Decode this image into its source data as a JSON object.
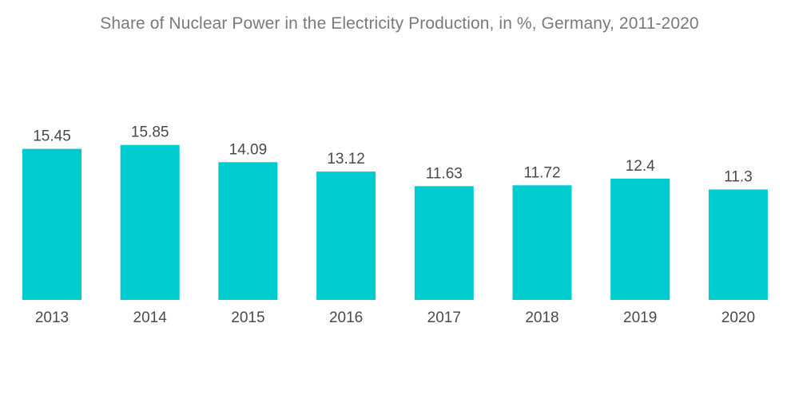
{
  "chart_data": {
    "type": "bar",
    "title": "Share of Nuclear Power in the Electricity Production, in %, Germany, 2011-2020",
    "categories": [
      "2013",
      "2014",
      "2015",
      "2016",
      "2017",
      "2018",
      "2019",
      "2020"
    ],
    "values": [
      15.45,
      15.85,
      14.09,
      13.12,
      11.63,
      11.72,
      12.4,
      11.3
    ],
    "value_labels": [
      "15.45",
      "15.85",
      "14.09",
      "13.12",
      "11.63",
      "11.72",
      "12.4",
      "11.3"
    ],
    "xlabel": "",
    "ylabel": "",
    "ylim": [
      0,
      16
    ],
    "grid": false,
    "legend": "none",
    "bar_color": "#00ccd0"
  }
}
